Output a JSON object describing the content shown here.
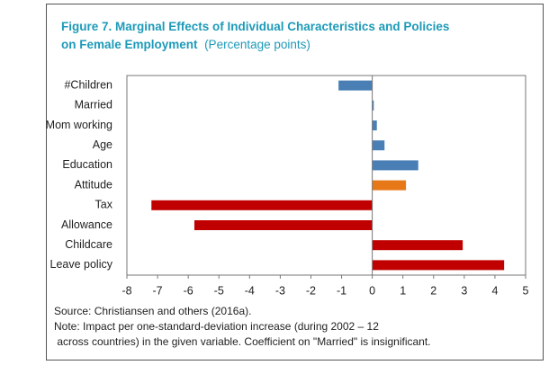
{
  "chart_data": {
    "type": "barh",
    "title": "Figure 7. Marginal Effects of Individual Characteristics and Policies on Female Employment",
    "units": "(Percentage points)",
    "categories": [
      "#Children",
      "Married",
      "Mom working",
      "Age",
      "Education",
      "Attitude",
      "Tax",
      "Allowance",
      "Childcare",
      "Leave policy"
    ],
    "values": [
      -1.1,
      0.05,
      0.15,
      0.4,
      1.5,
      1.1,
      -7.2,
      -5.8,
      2.95,
      4.3
    ],
    "colors": [
      "#4a7fb5",
      "#4a7fb5",
      "#4a7fb5",
      "#4a7fb5",
      "#4a7fb5",
      "#e67818",
      "#c00000",
      "#c00000",
      "#c00000",
      "#c00000"
    ],
    "xlim": [
      -8,
      5
    ],
    "xticks": [
      -8,
      -7,
      -6,
      -5,
      -4,
      -3,
      -2,
      -1,
      0,
      1,
      2,
      3,
      4,
      5
    ],
    "notes": [
      "Source: Christiansen and others (2016a).",
      "Note: Impact per one-standard-deviation increase (during 2002 – 12",
      " across countries) in the given variable. Coefficient on \"Married\" is insignificant."
    ]
  }
}
